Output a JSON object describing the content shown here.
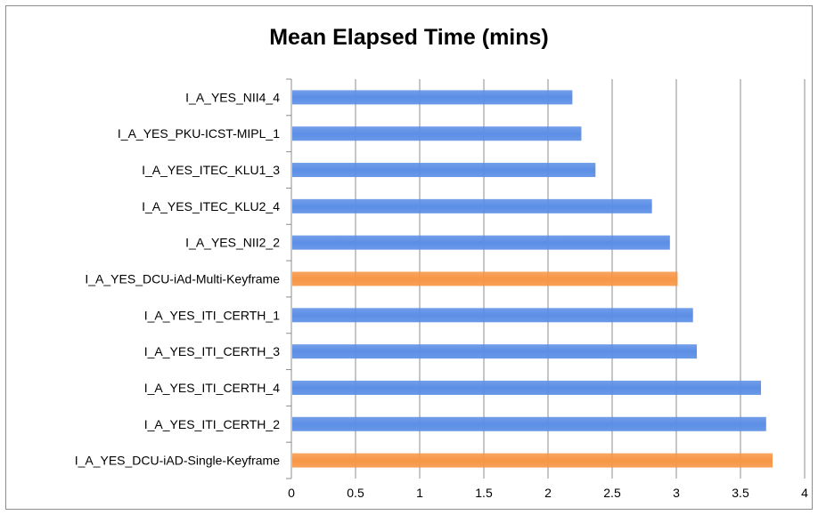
{
  "chart_data": {
    "type": "bar",
    "orientation": "horizontal",
    "title": "Mean Elapsed Time (mins)",
    "xlabel": "",
    "ylabel": "",
    "xlim": [
      0,
      4
    ],
    "xticks": [
      "0",
      "0.5",
      "1",
      "1.5",
      "2",
      "2.5",
      "3",
      "3.5",
      "4"
    ],
    "grid": "vertical",
    "legend": "none",
    "categories": [
      "I_A_YES_NII4_4",
      "I_A_YES_PKU-ICST-MIPL_1",
      "I_A_YES_ITEC_KLU1_3",
      "I_A_YES_ITEC_KLU2_4",
      "I_A_YES_NII2_2",
      "I_A_YES_DCU-iAd-Multi-Keyframe",
      "I_A_YES_ITI_CERTH_1",
      "I_A_YES_ITI_CERTH_3",
      "I_A_YES_ITI_CERTH_4",
      "I_A_YES_ITI_CERTH_2",
      "I_A_YES_DCU-iAD-Single-Keyframe"
    ],
    "values": [
      2.19,
      2.26,
      2.37,
      2.81,
      2.95,
      3.01,
      3.13,
      3.16,
      3.66,
      3.7,
      3.75
    ],
    "bar_colors": [
      "#5b8ee6",
      "#5b8ee6",
      "#5b8ee6",
      "#5b8ee6",
      "#5b8ee6",
      "#f79646",
      "#5b8ee6",
      "#5b8ee6",
      "#5b8ee6",
      "#5b8ee6",
      "#f79646"
    ]
  }
}
